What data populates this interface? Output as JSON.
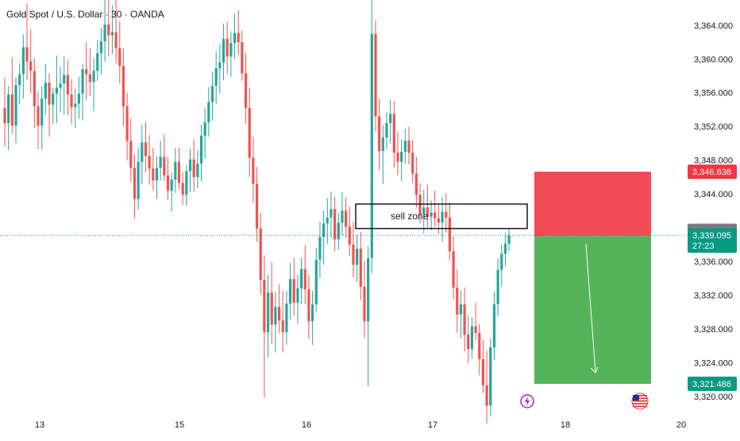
{
  "header": {
    "title": "Gold Spot / U.S. Dollar · 30 · OANDA"
  },
  "chart_data": {
    "type": "candlestick",
    "title": "Gold Spot / U.S. Dollar · 30 · OANDA",
    "ylim": [
      3318,
      3367
    ],
    "y_ticks": [
      3364,
      3360,
      3356,
      3352,
      3348,
      3344,
      3340,
      3336,
      3332,
      3328,
      3324,
      3320
    ],
    "y_tick_labels": [
      "3,364.000",
      "3,360.000",
      "3,356.000",
      "3,352.000",
      "3,348.000",
      "3,344.000",
      "3,340.000",
      "3,336.000",
      "3,332.000",
      "3,328.000",
      "3,324.000",
      "3,320.000"
    ],
    "x_labels": [
      "13",
      "15",
      "16",
      "17",
      "18",
      "20"
    ],
    "colors": {
      "up": "#26a69a",
      "down": "#ef5350",
      "stop_zone": "#f23645",
      "target_zone": "#4caf50"
    },
    "price_lines": [
      {
        "label": "3,346.638",
        "value": 3346.638,
        "color": "#f23645"
      },
      {
        "label": "3,339.623",
        "value": 3339.623,
        "color": "#787b86"
      },
      {
        "label": "3,339.095",
        "sublabel": "27:23",
        "value": 3339.095,
        "color": "#089981"
      },
      {
        "label": "3,321.486",
        "value": 3321.486,
        "color": "#089981"
      }
    ],
    "annotations": {
      "sell_zone": {
        "text": "sell zone",
        "top": 3342.8,
        "bottom": 3339.9
      },
      "short_position": {
        "entry": 3339.0,
        "stop": 3346.638,
        "target": 3321.486
      }
    },
    "candles": [
      [
        3354.2,
        3357.8,
        3349.6,
        3352.4
      ],
      [
        3352.4,
        3356.8,
        3349.2,
        3355.8
      ],
      [
        3355.8,
        3360.2,
        3351.1,
        3352.1
      ],
      [
        3352.1,
        3357.8,
        3350.0,
        3356.9
      ],
      [
        3356.9,
        3359.5,
        3354.6,
        3358.2
      ],
      [
        3358.2,
        3362.9,
        3355.3,
        3361.4
      ],
      [
        3361.4,
        3366.6,
        3357.5,
        3359.7
      ],
      [
        3359.7,
        3363.5,
        3355.9,
        3358.6
      ],
      [
        3358.6,
        3360.1,
        3351.8,
        3354.4
      ],
      [
        3354.4,
        3356.2,
        3349.3,
        3352.1
      ],
      [
        3352.1,
        3356.8,
        3349.3,
        3355.3
      ],
      [
        3355.3,
        3359.4,
        3353.4,
        3357.2
      ],
      [
        3357.2,
        3358.3,
        3350.8,
        3354.6
      ],
      [
        3354.6,
        3356.6,
        3352.3,
        3355.9
      ],
      [
        3355.9,
        3360.4,
        3352.4,
        3356.6
      ],
      [
        3356.6,
        3359.1,
        3353.7,
        3357.1
      ],
      [
        3357.1,
        3360.3,
        3353.4,
        3358.1
      ],
      [
        3358.1,
        3359.9,
        3353.3,
        3355.8
      ],
      [
        3355.8,
        3357.6,
        3352.3,
        3354.3
      ],
      [
        3354.3,
        3356.5,
        3351.8,
        3354.7
      ],
      [
        3354.7,
        3357.9,
        3352.9,
        3355.9
      ],
      [
        3355.9,
        3359.4,
        3352.7,
        3358.8
      ],
      [
        3358.8,
        3362.0,
        3355.1,
        3358.2
      ],
      [
        3358.2,
        3361.3,
        3355.6,
        3357.3
      ],
      [
        3357.3,
        3360.1,
        3353.8,
        3358.6
      ],
      [
        3358.6,
        3362.3,
        3357.4,
        3360.7
      ],
      [
        3360.7,
        3363.7,
        3358.2,
        3362.1
      ],
      [
        3362.1,
        3367.0,
        3359.7,
        3364.1
      ],
      [
        3364.1,
        3367.0,
        3360.3,
        3362.8
      ],
      [
        3362.8,
        3366.4,
        3360.6,
        3363.2
      ],
      [
        3363.2,
        3367.0,
        3359.5,
        3361.3
      ],
      [
        3361.3,
        3364.5,
        3357.1,
        3359.2
      ],
      [
        3359.2,
        3361.3,
        3352.1,
        3354.4
      ],
      [
        3354.4,
        3356.0,
        3348.0,
        3350.3
      ],
      [
        3350.3,
        3353.0,
        3345.4,
        3347.1
      ],
      [
        3347.1,
        3348.7,
        3341.1,
        3343.4
      ],
      [
        3343.4,
        3349.5,
        3342.1,
        3347.8
      ],
      [
        3347.8,
        3352.2,
        3345.2,
        3350.1
      ],
      [
        3350.1,
        3352.5,
        3346.6,
        3348.5
      ],
      [
        3348.5,
        3351.0,
        3345.1,
        3347.0
      ],
      [
        3347.0,
        3349.5,
        3344.4,
        3345.6
      ],
      [
        3345.6,
        3348.5,
        3343.4,
        3347.1
      ],
      [
        3347.1,
        3350.3,
        3345.6,
        3348.4
      ],
      [
        3348.4,
        3351.1,
        3345.5,
        3346.2
      ],
      [
        3346.2,
        3348.4,
        3343.3,
        3344.4
      ],
      [
        3344.4,
        3346.6,
        3341.9,
        3345.7
      ],
      [
        3345.7,
        3349.5,
        3344.1,
        3347.8
      ],
      [
        3347.8,
        3349.5,
        3344.5,
        3345.3
      ],
      [
        3345.3,
        3346.6,
        3342.7,
        3343.9
      ],
      [
        3343.9,
        3347.4,
        3342.6,
        3346.7
      ],
      [
        3346.7,
        3349.4,
        3344.2,
        3348.1
      ],
      [
        3348.1,
        3350.5,
        3344.3,
        3346.0
      ],
      [
        3346.0,
        3349.2,
        3344.7,
        3347.6
      ],
      [
        3347.6,
        3352.2,
        3345.5,
        3350.9
      ],
      [
        3350.9,
        3354.2,
        3348.2,
        3352.5
      ],
      [
        3352.5,
        3356.7,
        3350.8,
        3354.9
      ],
      [
        3354.9,
        3358.4,
        3352.7,
        3356.8
      ],
      [
        3356.8,
        3360.9,
        3354.7,
        3358.9
      ],
      [
        3358.9,
        3361.8,
        3355.9,
        3359.6
      ],
      [
        3359.6,
        3364.2,
        3357.5,
        3362.4
      ],
      [
        3362.4,
        3364.4,
        3358.2,
        3360.3
      ],
      [
        3360.3,
        3363.3,
        3357.9,
        3361.9
      ],
      [
        3361.9,
        3365.4,
        3360.0,
        3363.1
      ],
      [
        3363.1,
        3365.8,
        3360.5,
        3362.0
      ],
      [
        3362.0,
        3363.4,
        3357.4,
        3358.3
      ],
      [
        3358.3,
        3360.7,
        3352.3,
        3354.2
      ],
      [
        3354.2,
        3356.6,
        3346.0,
        3348.3
      ],
      [
        3348.3,
        3350.8,
        3343.0,
        3345.2
      ],
      [
        3345.2,
        3347.2,
        3338.3,
        3339.9
      ],
      [
        3339.9,
        3341.7,
        3332.1,
        3333.8
      ],
      [
        3333.8,
        3336.7,
        3319.8,
        3327.6
      ],
      [
        3327.6,
        3334.4,
        3324.6,
        3332.3
      ],
      [
        3332.3,
        3335.9,
        3326.2,
        3328.5
      ],
      [
        3328.5,
        3332.4,
        3325.2,
        3330.6
      ],
      [
        3330.6,
        3333.3,
        3327.5,
        3329.0
      ],
      [
        3329.0,
        3332.5,
        3325.2,
        3327.6
      ],
      [
        3327.6,
        3332.5,
        3326.1,
        3331.0
      ],
      [
        3331.0,
        3335.8,
        3329.1,
        3333.9
      ],
      [
        3333.9,
        3336.4,
        3329.6,
        3331.1
      ],
      [
        3331.1,
        3334.4,
        3328.6,
        3332.8
      ],
      [
        3332.8,
        3336.4,
        3330.9,
        3335.1
      ],
      [
        3335.1,
        3337.9,
        3330.9,
        3332.7
      ],
      [
        3332.7,
        3334.4,
        3326.8,
        3328.9
      ],
      [
        3328.9,
        3332.5,
        3326.1,
        3330.9
      ],
      [
        3330.9,
        3337.6,
        3329.9,
        3336.2
      ],
      [
        3336.2,
        3340.7,
        3334.0,
        3338.9
      ],
      [
        3338.9,
        3342.0,
        3335.6,
        3340.5
      ],
      [
        3340.5,
        3343.5,
        3338.1,
        3341.2
      ],
      [
        3341.2,
        3344.3,
        3338.8,
        3342.2
      ],
      [
        3342.2,
        3343.7,
        3337.2,
        3338.6
      ],
      [
        3338.6,
        3341.8,
        3337.4,
        3340.6
      ],
      [
        3340.6,
        3344.2,
        3339.1,
        3342.0
      ],
      [
        3342.0,
        3343.6,
        3338.8,
        3340.1
      ],
      [
        3340.1,
        3342.5,
        3336.6,
        3338.0
      ],
      [
        3338.0,
        3340.7,
        3334.1,
        3335.6
      ],
      [
        3335.6,
        3339.2,
        3333.6,
        3337.5
      ],
      [
        3337.5,
        3339.5,
        3331.4,
        3333.0
      ],
      [
        3333.0,
        3336.1,
        3326.9,
        3328.9
      ],
      [
        3328.9,
        3337.8,
        3321.2,
        3336.4
      ],
      [
        3336.4,
        3367.0,
        3334.6,
        3363.0
      ],
      [
        3363.0,
        3364.6,
        3351.4,
        3353.2
      ],
      [
        3353.2,
        3355.3,
        3346.8,
        3349.1
      ],
      [
        3349.1,
        3352.2,
        3345.2,
        3350.7
      ],
      [
        3350.7,
        3353.7,
        3349.3,
        3352.4
      ],
      [
        3352.4,
        3355.2,
        3350.0,
        3353.5
      ],
      [
        3353.5,
        3355.0,
        3347.1,
        3348.9
      ],
      [
        3348.9,
        3351.4,
        3346.2,
        3347.8
      ],
      [
        3347.8,
        3350.5,
        3345.5,
        3349.0
      ],
      [
        3349.0,
        3351.7,
        3347.6,
        3350.3
      ],
      [
        3350.3,
        3352.0,
        3347.5,
        3348.9
      ],
      [
        3348.9,
        3350.4,
        3345.3,
        3346.4
      ],
      [
        3346.4,
        3348.4,
        3342.4,
        3343.9
      ],
      [
        3343.9,
        3345.3,
        3340.5,
        3341.6
      ],
      [
        3341.6,
        3344.5,
        3339.3,
        3342.4
      ],
      [
        3342.4,
        3345.1,
        3340.0,
        3341.3
      ],
      [
        3341.3,
        3343.2,
        3339.7,
        3341.8
      ],
      [
        3341.8,
        3344.4,
        3340.1,
        3341.1
      ],
      [
        3341.1,
        3342.9,
        3339.3,
        3340.6
      ],
      [
        3340.6,
        3343.6,
        3338.3,
        3341.9
      ],
      [
        3341.9,
        3344.1,
        3339.4,
        3341.2
      ],
      [
        3341.2,
        3343.0,
        3336.1,
        3337.2
      ],
      [
        3337.2,
        3339.0,
        3331.5,
        3332.9
      ],
      [
        3332.9,
        3335.0,
        3327.6,
        3329.7
      ],
      [
        3329.7,
        3332.6,
        3326.9,
        3330.9
      ],
      [
        3330.9,
        3332.9,
        3325.3,
        3327.3
      ],
      [
        3327.3,
        3329.6,
        3323.9,
        3325.6
      ],
      [
        3325.6,
        3329.4,
        3324.5,
        3328.3
      ],
      [
        3328.3,
        3331.1,
        3326.6,
        3327.5
      ],
      [
        3327.5,
        3328.6,
        3322.5,
        3324.4
      ],
      [
        3324.4,
        3326.7,
        3320.4,
        3321.3
      ],
      [
        3321.3,
        3325.4,
        3316.8,
        3318.9
      ],
      [
        3318.9,
        3326.9,
        3317.6,
        3325.8
      ],
      [
        3325.8,
        3332.4,
        3324.3,
        3330.9
      ],
      [
        3330.9,
        3336.3,
        3329.5,
        3335.0
      ],
      [
        3335.0,
        3338.0,
        3333.0,
        3336.9
      ],
      [
        3336.9,
        3339.4,
        3335.4,
        3338.1
      ],
      [
        3338.1,
        3339.9,
        3337.2,
        3339.1
      ]
    ]
  }
}
